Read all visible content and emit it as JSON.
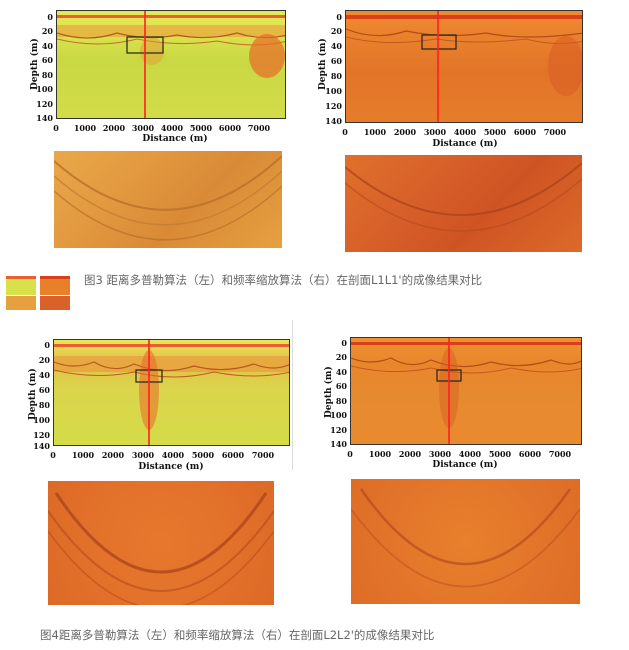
{
  "fig3": {
    "caption": "图3 距离多普勒算法（左）和频率缩放算法（右）在剖面L1L1'的成像结果对比",
    "left": {
      "ylabel": "Depth (m)",
      "xlabel": "Distance (m)",
      "yticks": [
        "0",
        "20",
        "40",
        "60",
        "80",
        "100",
        "120",
        "140"
      ],
      "xticks": [
        "0",
        "1000",
        "2000",
        "3000",
        "4000",
        "5000",
        "6000",
        "7000"
      ]
    },
    "right": {
      "ylabel": "Depth (m)",
      "xlabel": "Distance (m)",
      "yticks": [
        "0",
        "20",
        "40",
        "60",
        "80",
        "100",
        "120",
        "140"
      ],
      "xticks": [
        "0",
        "1000",
        "2000",
        "3000",
        "4000",
        "5000",
        "6000",
        "7000"
      ]
    }
  },
  "fig4": {
    "caption": "图4距离多普勒算法（左）和频率缩放算法（右）在剖面L2L2'的成像结果对比",
    "left": {
      "ylabel": "Depth (m)",
      "xlabel": "Distance (m)",
      "yticks": [
        "0",
        "20",
        "40",
        "60",
        "80",
        "100",
        "120",
        "140"
      ],
      "xticks": [
        "0",
        "1000",
        "2000",
        "3000",
        "4000",
        "5000",
        "6000",
        "7000"
      ]
    },
    "right": {
      "ylabel": "Depth (m)",
      "xlabel": "Distance (m)",
      "yticks": [
        "0",
        "20",
        "40",
        "60",
        "80",
        "100",
        "120",
        "140"
      ],
      "xticks": [
        "0",
        "1000",
        "2000",
        "3000",
        "4000",
        "5000",
        "6000",
        "7000"
      ]
    }
  },
  "colors": {
    "rda_bg": "#d8e04a",
    "fsa_bg": "#e8802a",
    "deep_orange": "#d9501c",
    "cursor_line": "#ff2020",
    "caption_text": "#666666"
  }
}
